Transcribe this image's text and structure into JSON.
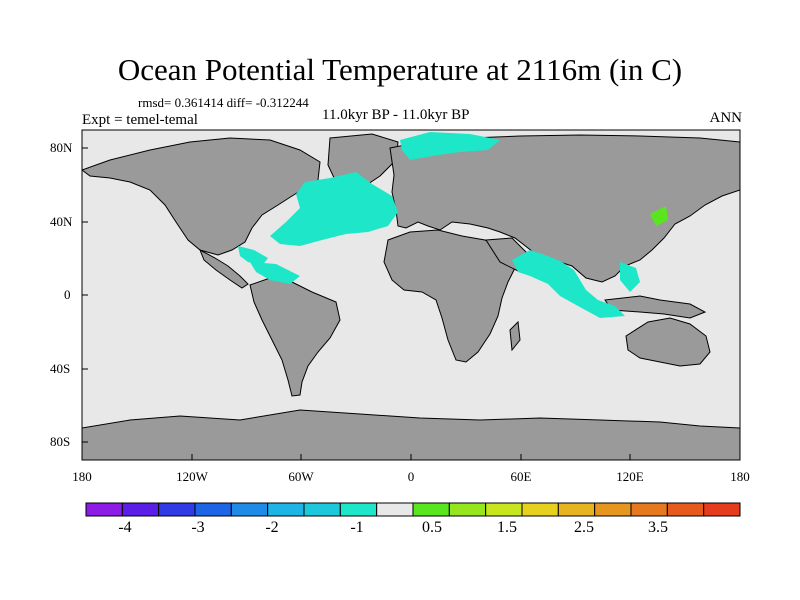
{
  "title": "Ocean Potential Temperature at 2116m (in C)",
  "stats_text": "rmsd= 0.361414  diff= -0.312244",
  "experiment_text": "Expt = temel-temal",
  "period_text": "11.0kyr BP - 11.0kyr BP",
  "season_text": "ANN",
  "lat_labels": [
    "80N",
    "40N",
    "0",
    "40S",
    "80S"
  ],
  "lon_labels": [
    "180",
    "120W",
    "60W",
    "0",
    "60E",
    "120E",
    "180"
  ],
  "colorbar": {
    "colors": [
      "#8c1ce6",
      "#5a1ee6",
      "#2f3ce6",
      "#1e64e6",
      "#1e8ce6",
      "#1eb4e6",
      "#1ec8dc",
      "#1ee6c8",
      "#e8e8e8",
      "#5ae61e",
      "#96e61e",
      "#c8e61e",
      "#e6d21e",
      "#e6b41e",
      "#e6961e",
      "#e6781e",
      "#e65a1e",
      "#e63c1e"
    ],
    "labels": [
      "-4",
      "-3",
      "-2",
      "-1",
      "0.5",
      "1.5",
      "2.5",
      "3.5"
    ]
  },
  "palette": {
    "land": "#9a9a9a",
    "ocean_zero": "#e8e8e8",
    "anomaly_cyan": "#1ee6c8",
    "anomaly_green": "#5ae61e"
  }
}
